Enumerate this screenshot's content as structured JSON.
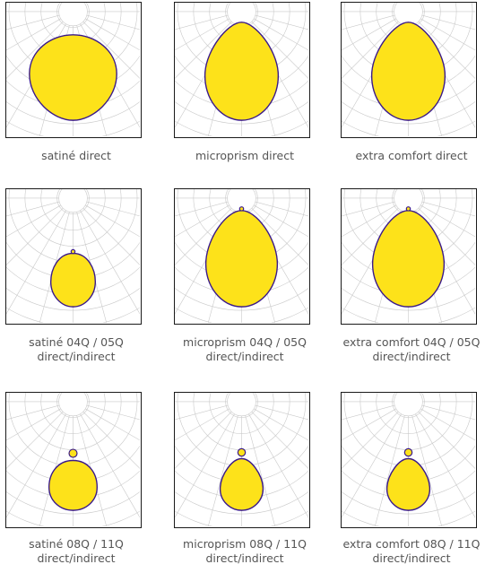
{
  "colors": {
    "fill": "#fde21a",
    "outline": "#3a1a8a",
    "grid": "#c9c9c9",
    "frame": "#1a1a1a",
    "caption": "#555555"
  },
  "diagrams": [
    {
      "caption": [
        "satiné direct"
      ],
      "shape": "direct-wide"
    },
    {
      "caption": [
        "microprism direct"
      ],
      "shape": "direct-narrow"
    },
    {
      "caption": [
        "extra comfort direct"
      ],
      "shape": "direct-narrow"
    },
    {
      "caption": [
        "satiné 04Q / 05Q",
        "direct/indirect"
      ],
      "shape": "indirect-small"
    },
    {
      "caption": [
        "microprism 04Q / 05Q",
        "direct/indirect"
      ],
      "shape": "indirect-large"
    },
    {
      "caption": [
        "extra comfort 04Q / 05Q",
        "direct/indirect"
      ],
      "shape": "indirect-large"
    },
    {
      "caption": [
        "satiné 08Q / 11Q",
        "direct/indirect"
      ],
      "shape": "indirect-bulb"
    },
    {
      "caption": [
        "microprism 08Q / 11Q",
        "direct/indirect"
      ],
      "shape": "indirect-bulb-narrow"
    },
    {
      "caption": [
        "extra comfort 08Q / 11Q",
        "direct/indirect"
      ],
      "shape": "indirect-bulb-narrow"
    }
  ]
}
